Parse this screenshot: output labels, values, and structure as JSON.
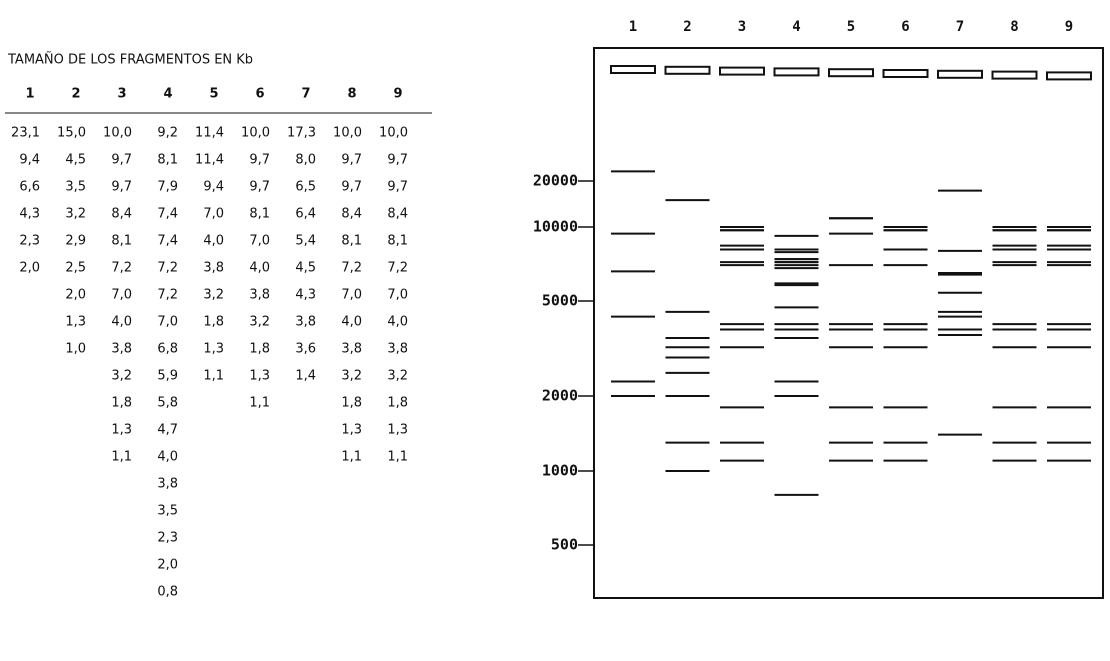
{
  "table": {
    "title": "TAMAÑO DE LOS FRAGMENTOS EN Kb",
    "header": [
      "1",
      "2",
      "3",
      "4",
      "5",
      "6",
      "7",
      "8",
      "9"
    ],
    "columns": [
      [
        "23,1",
        "9,4",
        "6,6",
        "4,3",
        "2,3",
        "2,0"
      ],
      [
        "15,0",
        "4,5",
        "3,5",
        "3,2",
        "2,9",
        "2,5",
        "2,0",
        "1,3",
        "1,0"
      ],
      [
        "10,0",
        "9,7",
        "9,7",
        "8,4",
        "8,1",
        "7,2",
        "7,0",
        "4,0",
        "3,8",
        "3,2",
        "1,8",
        "1,3",
        "1,1"
      ],
      [
        "9,2",
        "8,1",
        "7,9",
        "7,4",
        "7,4",
        "7,2",
        "7,2",
        "7,0",
        "6,8",
        "5,9",
        "5,8",
        "4,7",
        "4,0",
        "3,8",
        "3,5",
        "2,3",
        "2,0",
        "0,8"
      ],
      [
        "11,4",
        "11,4",
        "9,4",
        "7,0",
        "4,0",
        "3,8",
        "3,2",
        "1,8",
        "1,3",
        "1,1"
      ],
      [
        "10,0",
        "9,7",
        "9,7",
        "8,1",
        "7,0",
        "4,0",
        "3,8",
        "3,2",
        "1,8",
        "1,3",
        "1,1"
      ],
      [
        "17,3",
        "8,0",
        "6,5",
        "6,4",
        "5,4",
        "4,5",
        "4,3",
        "3,8",
        "3,6",
        "1,4"
      ],
      [
        "10,0",
        "9,7",
        "9,7",
        "8,4",
        "8,1",
        "7,2",
        "7,0",
        "4,0",
        "3,8",
        "3,2",
        "1,8",
        "1,3",
        "1,1"
      ],
      [
        "10,0",
        "9,7",
        "9,7",
        "8,4",
        "8,1",
        "7,2",
        "7,0",
        "4,0",
        "3,8",
        "3,2",
        "1,8",
        "1,3",
        "1,1"
      ]
    ]
  },
  "gel": {
    "lanes": [
      "1",
      "2",
      "3",
      "4",
      "5",
      "6",
      "7",
      "8",
      "9"
    ],
    "markers": [
      20000,
      10000,
      5000,
      2000,
      1000,
      500
    ]
  }
}
